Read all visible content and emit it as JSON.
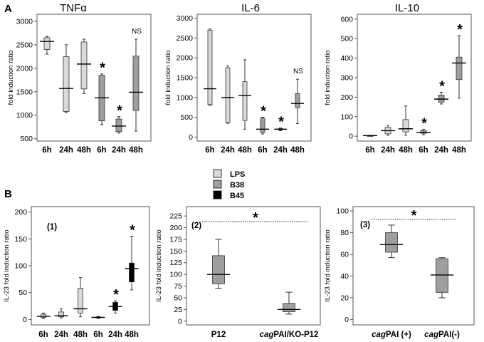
{
  "panel_labels": [
    "A",
    "B"
  ],
  "legend": {
    "entries": [
      {
        "label": "LPS",
        "color": "#d9d9d9"
      },
      {
        "label": "B38",
        "color": "#9e9e9e"
      },
      {
        "label": "B45",
        "color": "#000000"
      }
    ]
  },
  "chart_data": [
    {
      "type": "box",
      "title": "TNFα",
      "ylabel": "fold induction ratio",
      "ylim": [
        450,
        3150
      ],
      "yticks": [
        500,
        1000,
        1500,
        2000,
        2500,
        3000
      ],
      "categories": [
        "6h",
        "24h",
        "48h",
        "6h",
        "24h",
        "48h"
      ],
      "boxes": [
        {
          "group": "LPS",
          "min": 2300,
          "q1": 2400,
          "median": 2570,
          "q3": 2650,
          "max": 2680
        },
        {
          "group": "LPS",
          "min": 1060,
          "q1": 1080,
          "median": 1570,
          "q3": 2250,
          "max": 2500
        },
        {
          "group": "LPS",
          "min": 1460,
          "q1": 1560,
          "median": 2090,
          "q3": 2560,
          "max": 2620
        },
        {
          "group": "B38",
          "min": 800,
          "q1": 880,
          "median": 1370,
          "q3": 1850,
          "max": 1880
        },
        {
          "group": "B38",
          "min": 620,
          "q1": 650,
          "median": 770,
          "q3": 920,
          "max": 970
        },
        {
          "group": "B38",
          "min": 660,
          "q1": 1100,
          "median": 1490,
          "q3": 2260,
          "max": 2620
        }
      ],
      "annotations": [
        "",
        "",
        "",
        "*",
        "*",
        "NS"
      ]
    },
    {
      "type": "box",
      "title": "IL-6",
      "ylabel": "fold induction ratio",
      "ylim": [
        -100,
        3100
      ],
      "yticks": [
        0,
        500,
        1000,
        1500,
        2000,
        2500,
        3000
      ],
      "categories": [
        "6h",
        "24h",
        "48h",
        "6h",
        "24h",
        "48h"
      ],
      "boxes": [
        {
          "group": "LPS",
          "min": 800,
          "q1": 820,
          "median": 1220,
          "q3": 2700,
          "max": 2730
        },
        {
          "group": "LPS",
          "min": 350,
          "q1": 370,
          "median": 1000,
          "q3": 1750,
          "max": 1800
        },
        {
          "group": "LPS",
          "min": 200,
          "q1": 420,
          "median": 1050,
          "q3": 1400,
          "max": 1950
        },
        {
          "group": "B38",
          "min": 80,
          "q1": 120,
          "median": 200,
          "q3": 480,
          "max": 500
        },
        {
          "group": "B38",
          "min": 160,
          "q1": 180,
          "median": 200,
          "q3": 220,
          "max": 230
        },
        {
          "group": "B38",
          "min": 340,
          "q1": 740,
          "median": 850,
          "q3": 1100,
          "max": 1460
        }
      ],
      "annotations": [
        "",
        "",
        "",
        "*",
        "*",
        "NS"
      ]
    },
    {
      "type": "box",
      "title": "IL-10",
      "ylabel": "fold induction ratio",
      "ylim": [
        -25,
        625
      ],
      "yticks": [
        0,
        100,
        200,
        300,
        400,
        500,
        600
      ],
      "categories": [
        "6h",
        "24h",
        "48h",
        "6h",
        "24h",
        "48h"
      ],
      "boxes": [
        {
          "group": "LPS",
          "min": 1,
          "q1": 2,
          "median": 3,
          "q3": 4,
          "max": 5
        },
        {
          "group": "LPS",
          "min": 5,
          "q1": 12,
          "median": 28,
          "q3": 45,
          "max": 55
        },
        {
          "group": "LPS",
          "min": 5,
          "q1": 22,
          "median": 38,
          "q3": 85,
          "max": 155
        },
        {
          "group": "B38",
          "min": 8,
          "q1": 15,
          "median": 20,
          "q3": 28,
          "max": 35
        },
        {
          "group": "B38",
          "min": 165,
          "q1": 175,
          "median": 190,
          "q3": 210,
          "max": 225
        },
        {
          "group": "B38",
          "min": 195,
          "q1": 290,
          "median": 375,
          "q3": 405,
          "max": 515
        }
      ],
      "annotations": [
        "",
        "",
        "",
        "*",
        "*",
        "*"
      ]
    },
    {
      "type": "box",
      "title": "",
      "sublabel": "(1)",
      "ylabel": "IL-23 fold induction ratio",
      "ylim": [
        -10,
        210
      ],
      "yticks": [
        0,
        50,
        100,
        150,
        200
      ],
      "categories": [
        "6h",
        "24h",
        "48h",
        "6h",
        "24h",
        "48h"
      ],
      "boxes": [
        {
          "group": "LPS",
          "min": 2,
          "q1": 4,
          "median": 6,
          "q3": 10,
          "max": 12
        },
        {
          "group": "LPS",
          "min": 3,
          "q1": 5,
          "median": 7,
          "q3": 14,
          "max": 20
        },
        {
          "group": "LPS",
          "min": 5,
          "q1": 12,
          "median": 20,
          "q3": 58,
          "max": 78
        },
        {
          "group": "B38",
          "min": 2,
          "q1": 3,
          "median": 4,
          "q3": 5,
          "max": 6
        },
        {
          "group": "B45",
          "min": 12,
          "q1": 17,
          "median": 24,
          "q3": 32,
          "max": 35
        },
        {
          "group": "B45",
          "min": 55,
          "q1": 70,
          "median": 95,
          "q3": 105,
          "max": 155
        }
      ],
      "annotations": [
        "",
        "",
        "",
        "",
        "*",
        "*"
      ]
    },
    {
      "type": "box",
      "title": "",
      "sublabel": "(2)",
      "ylabel": "IL-23 fold induction ratio",
      "ylim": [
        -8,
        245
      ],
      "yticks": [
        0,
        25,
        50,
        75,
        100,
        125,
        150,
        175,
        200,
        225
      ],
      "categories": [
        "P12",
        "cagPAI/KO-P12"
      ],
      "category_parts": [
        {
          "italic": "",
          "plain": "P12"
        },
        {
          "italic": "cag",
          "plain": "PAI/KO-P12"
        }
      ],
      "boxes": [
        {
          "group": "B38",
          "min": 70,
          "q1": 80,
          "median": 100,
          "q3": 140,
          "max": 175
        },
        {
          "group": "B38",
          "min": 15,
          "q1": 20,
          "median": 25,
          "q3": 38,
          "max": 62
        }
      ],
      "annotations": [
        "*"
      ]
    },
    {
      "type": "box",
      "title": "",
      "sublabel": "(3)",
      "ylabel": "IL-23 fold induction ratio",
      "ylim": [
        -5,
        104
      ],
      "yticks": [
        0,
        20,
        40,
        60,
        80,
        100
      ],
      "categories": [
        "cagPAI (+)",
        "cagPAI(-)"
      ],
      "category_parts": [
        {
          "italic": "cag",
          "plain": "PAI (+)"
        },
        {
          "italic": "cag",
          "plain": "PAI(-)"
        }
      ],
      "boxes": [
        {
          "group": "B38",
          "min": 57,
          "q1": 62,
          "median": 69,
          "q3": 80,
          "max": 87
        },
        {
          "group": "B38",
          "min": 20,
          "q1": 25,
          "median": 41,
          "q3": 56,
          "max": 57
        }
      ],
      "annotations": [
        "*"
      ]
    }
  ]
}
